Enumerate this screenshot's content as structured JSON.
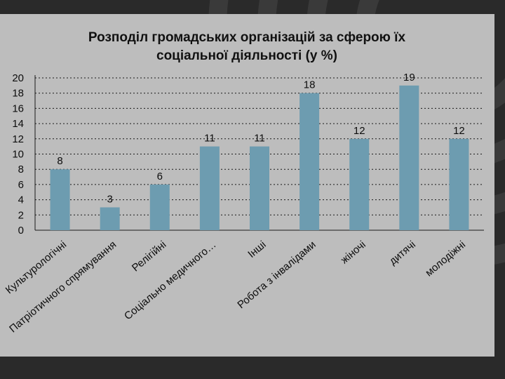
{
  "title_lines": [
    "Розподіл громадських організацій за сферою їх",
    "соціальної діяльності (у %)"
  ],
  "colors": {
    "background": "#2a2a2a",
    "panel": "#bdbdbd",
    "bar": "#6d9cb0",
    "grid": "#1a1a1a",
    "text": "#0d0d0d"
  },
  "chart_data": {
    "type": "bar",
    "title": "Розподіл громадських організацій за сферою їх соціальної діяльності (у %)",
    "categories": [
      "Культурологічні",
      "Патріотичного спрямування",
      "Релігійні",
      "Соціально медичного…",
      "Інші",
      "Робота з інвалідами",
      "жіночі",
      "дитячі",
      "молодіжні"
    ],
    "values": [
      8,
      3,
      6,
      11,
      11,
      18,
      12,
      19,
      12
    ],
    "data_labels": [
      "8",
      "3",
      "6",
      "11",
      "11",
      "18",
      "12",
      "19",
      "12"
    ],
    "y_ticks": [
      "0",
      "2",
      "4",
      "6",
      "8",
      "10",
      "12",
      "14",
      "16",
      "18",
      "20"
    ],
    "ylim": [
      0,
      20
    ],
    "xlabel": "",
    "ylabel": "",
    "grid": true,
    "legend": "none"
  }
}
